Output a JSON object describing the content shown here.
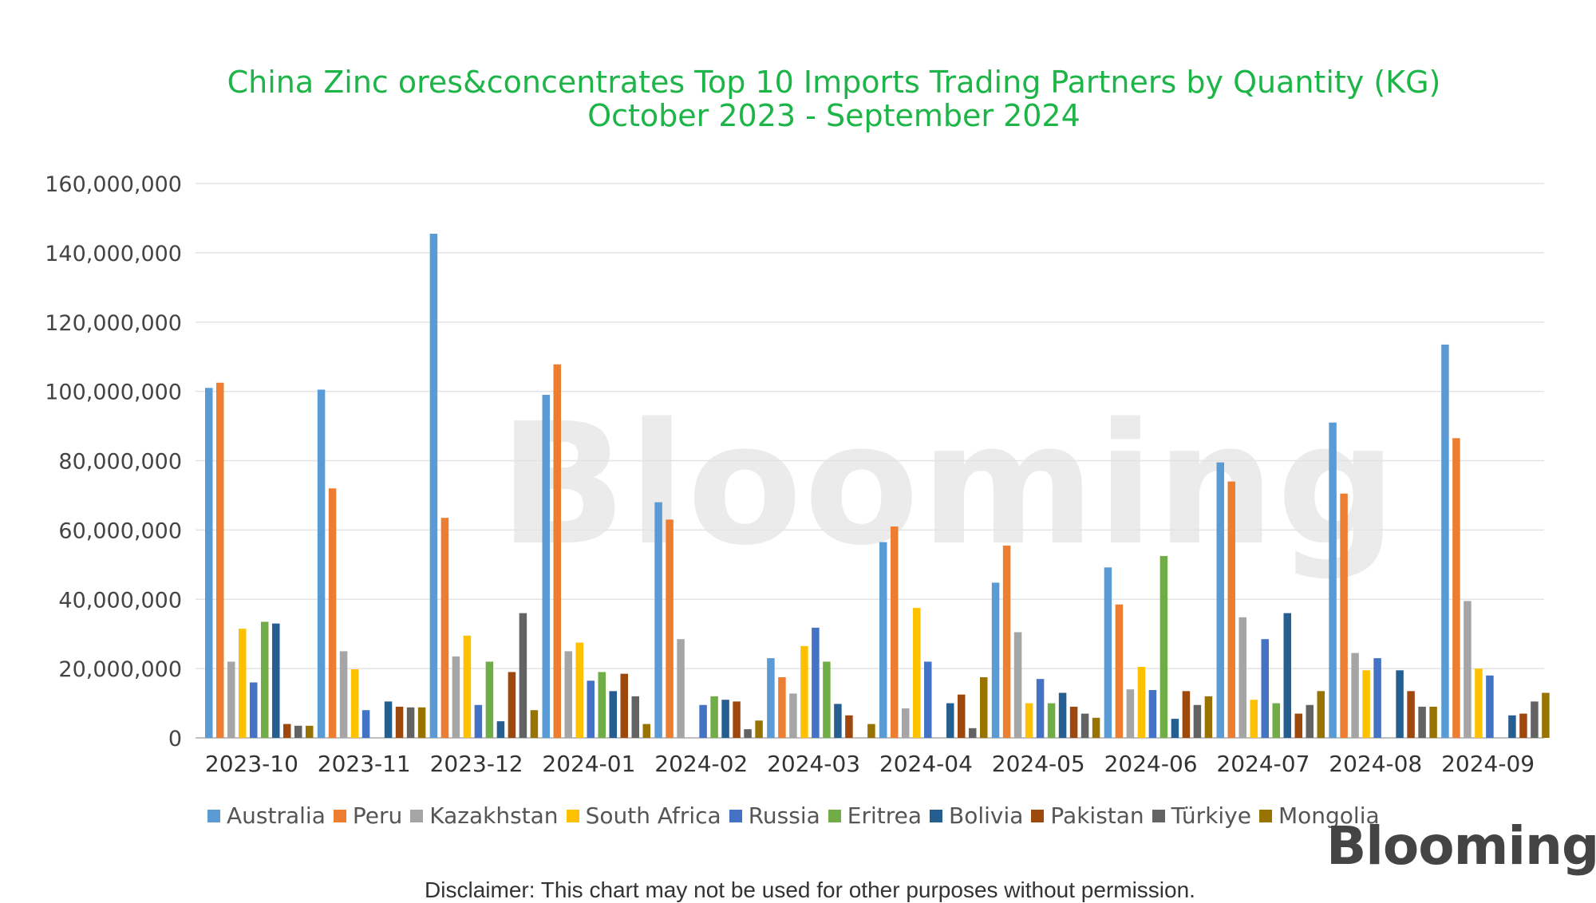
{
  "chart_data": {
    "type": "bar",
    "title": "China Zinc ores&concentrates Top 10 Imports Trading Partners by Quantity (KG)",
    "subtitle": "October 2023 - September 2024",
    "xlabel": "",
    "ylabel": "",
    "ylim": [
      0,
      160000000
    ],
    "yticks": [
      "0",
      "20,000,000",
      "40,000,000",
      "60,000,000",
      "80,000,000",
      "100,000,000",
      "120,000,000",
      "140,000,000",
      "160,000,000"
    ],
    "grid": true,
    "legend_position": "bottom",
    "categories": [
      "2023-10",
      "2023-11",
      "2023-12",
      "2024-01",
      "2024-02",
      "2024-03",
      "2024-04",
      "2024-05",
      "2024-06",
      "2024-07",
      "2024-08",
      "2024-09"
    ],
    "series": [
      {
        "name": "Australia",
        "color": "#5b9bd5",
        "values": [
          101000000,
          100500000,
          145500000,
          99000000,
          68000000,
          23000000,
          56500000,
          44800000,
          49200000,
          79500000,
          91000000,
          113500000
        ]
      },
      {
        "name": "Peru",
        "color": "#ed7d31",
        "values": [
          102500000,
          72000000,
          63500000,
          107800000,
          63000000,
          17500000,
          61000000,
          55500000,
          38500000,
          74000000,
          70500000,
          86500000
        ]
      },
      {
        "name": "Kazakhstan",
        "color": "#a5a5a5",
        "values": [
          22000000,
          25000000,
          23500000,
          25000000,
          28500000,
          12800000,
          8500000,
          30500000,
          14000000,
          34800000,
          24500000,
          39500000
        ]
      },
      {
        "name": "South Africa",
        "color": "#ffc000",
        "values": [
          31500000,
          19800000,
          29500000,
          27500000,
          0,
          26500000,
          37500000,
          10000000,
          20500000,
          11000000,
          19500000,
          20000000
        ]
      },
      {
        "name": "Russia",
        "color": "#4472c4",
        "values": [
          16000000,
          8000000,
          9500000,
          16500000,
          9500000,
          31800000,
          22000000,
          17000000,
          13800000,
          28500000,
          23000000,
          18000000
        ]
      },
      {
        "name": "Eritrea",
        "color": "#70ad47",
        "values": [
          33500000,
          0,
          22000000,
          19000000,
          12000000,
          22000000,
          0,
          10000000,
          52500000,
          10000000,
          0,
          0
        ]
      },
      {
        "name": "Bolivia",
        "color": "#255e91",
        "values": [
          33000000,
          10500000,
          4800000,
          13500000,
          11000000,
          9800000,
          10000000,
          13000000,
          5500000,
          36000000,
          19500000,
          6500000
        ]
      },
      {
        "name": "Pakistan",
        "color": "#9e480e",
        "values": [
          4000000,
          9000000,
          19000000,
          18500000,
          10500000,
          6500000,
          12500000,
          9000000,
          13500000,
          7000000,
          13500000,
          7000000
        ]
      },
      {
        "name": "Türkiye",
        "color": "#636363",
        "values": [
          3500000,
          8800000,
          36000000,
          12000000,
          2500000,
          0,
          2800000,
          7000000,
          9500000,
          9500000,
          9000000,
          10500000
        ]
      },
      {
        "name": "Mongolia",
        "color": "#997300",
        "values": [
          3500000,
          8800000,
          8000000,
          4000000,
          5000000,
          4000000,
          17500000,
          5800000,
          12000000,
          13500000,
          9000000,
          13000000
        ]
      }
    ]
  },
  "watermark": "Blooming",
  "logo": "Blooming",
  "disclaimer": "Disclaimer: This chart may not be used for other purposes without permission."
}
